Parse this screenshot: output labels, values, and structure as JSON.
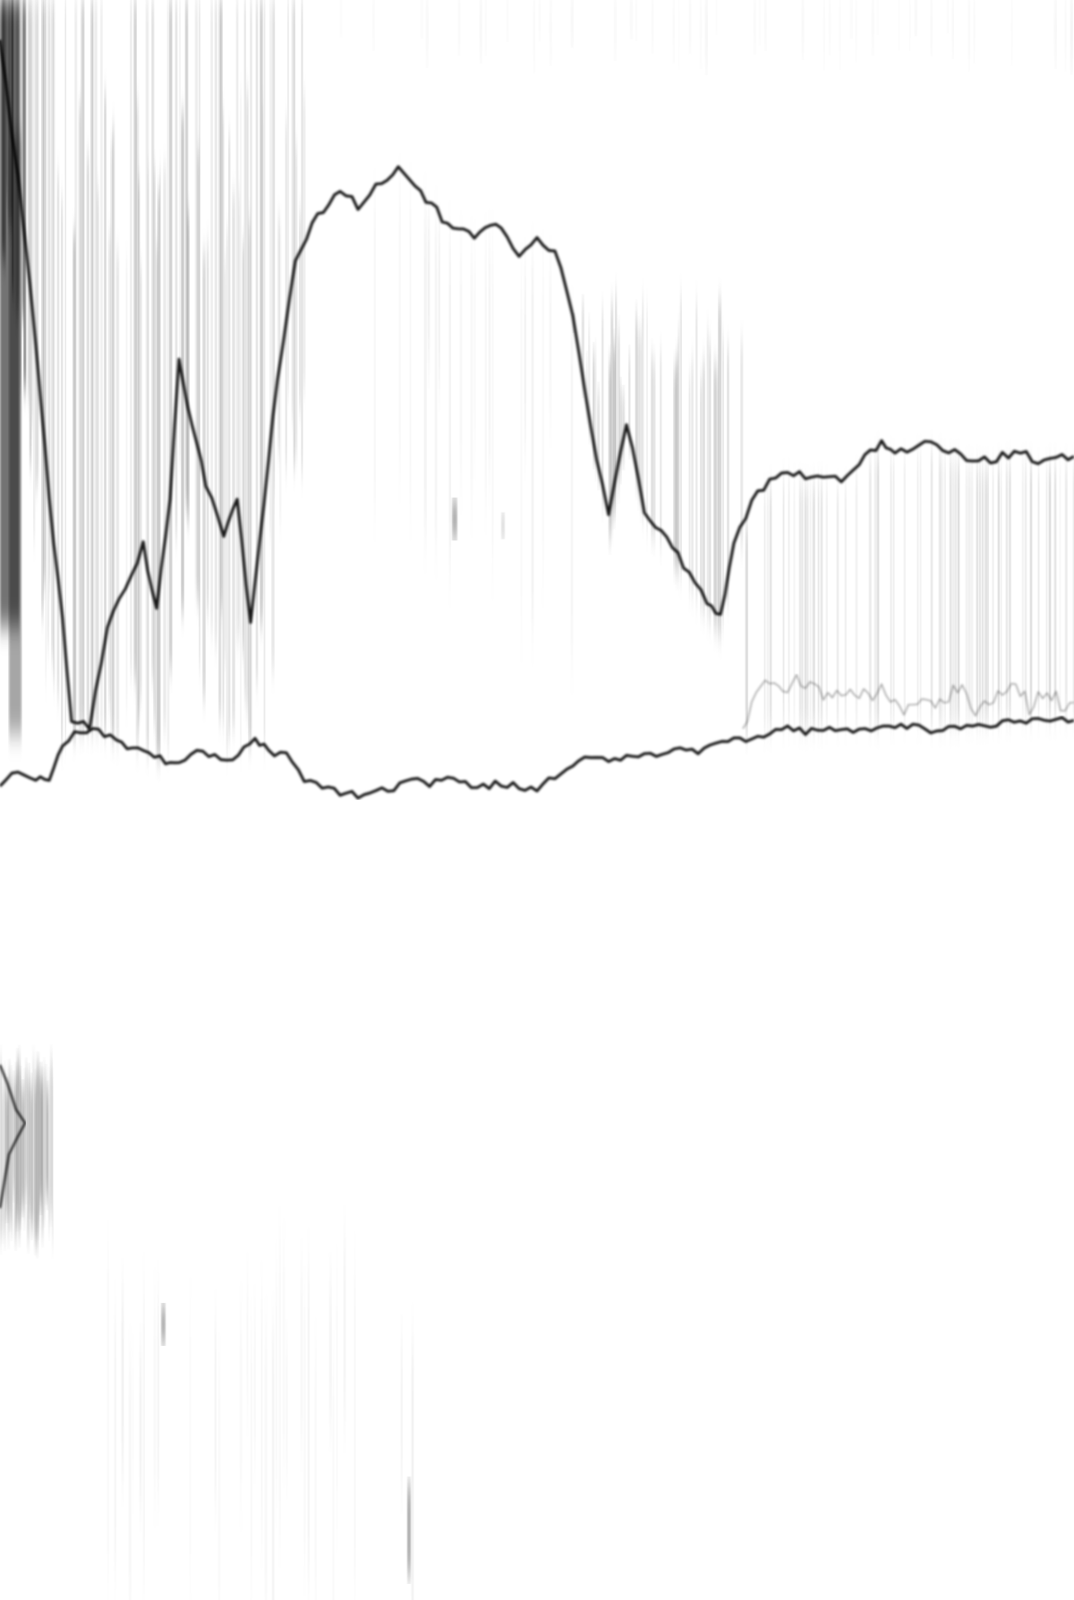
{
  "image": {
    "background_color": "#ffffff",
    "ink_color": "#000000"
  }
}
